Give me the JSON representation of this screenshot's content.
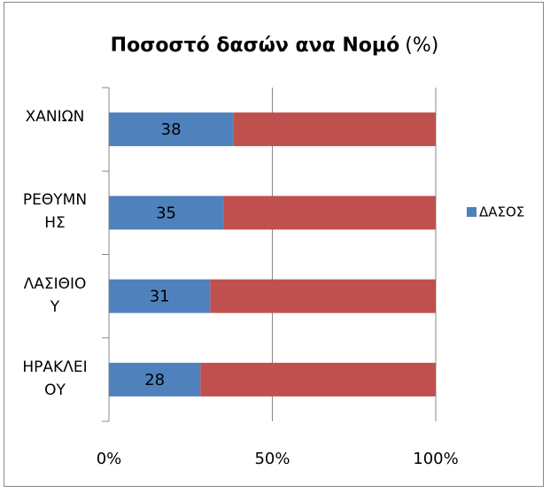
{
  "chart_data": {
    "type": "stacked-bar-100",
    "orientation": "horizontal",
    "title": "Ποσοστό δασών ανα Νομό",
    "title_suffix": "(%)",
    "categories": [
      "ΧΑΝΙΩΝ",
      "ΡΕΘΥΜΝΗΣ",
      "ΛΑΣΙΘΙΟΥ",
      "ΗΡΑΚΛΕΙΟΥ"
    ],
    "series": [
      {
        "name": "ΔΑΣΟΣ",
        "color": "#4f81bd",
        "values": [
          38,
          35,
          31,
          28
        ]
      },
      {
        "color": "#c0504d",
        "values": [
          62,
          65,
          69,
          72
        ]
      }
    ],
    "xlim": [
      0,
      100
    ],
    "xticks": [
      {
        "value": 0,
        "label": "0%"
      },
      {
        "value": 50,
        "label": "50%"
      },
      {
        "value": 100,
        "label": "100%"
      }
    ],
    "grid": true,
    "legend": "right"
  }
}
